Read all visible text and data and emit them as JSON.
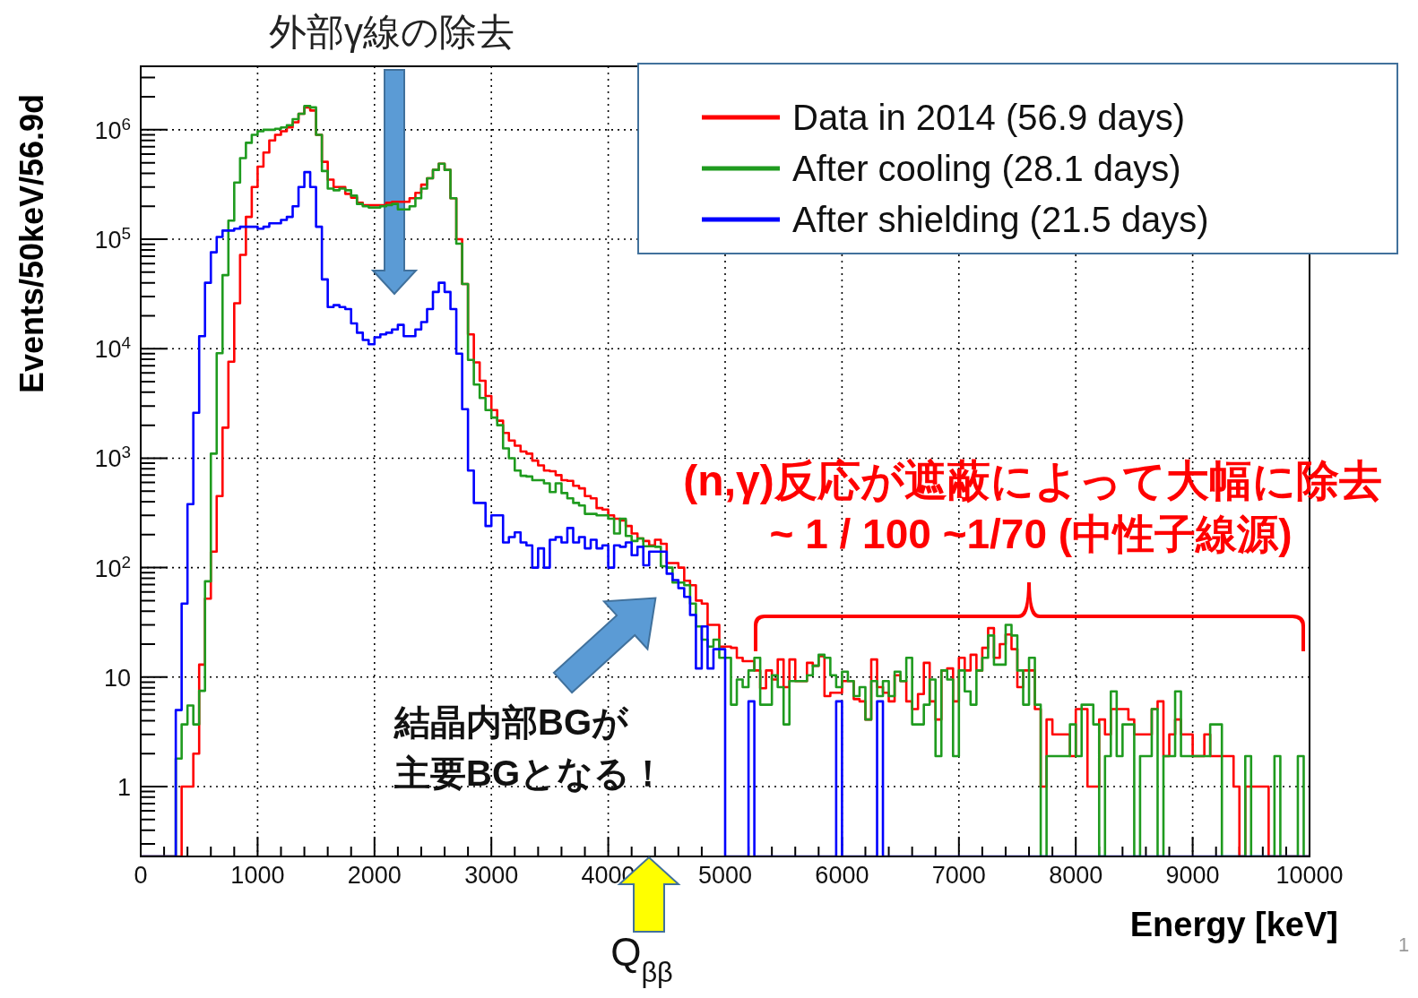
{
  "chart_data": {
    "type": "histogram",
    "xlabel": "Energy [keV]",
    "ylabel": "Events/50keV/56.9d",
    "bins": [
      0,
      50,
      100,
      150,
      200,
      250,
      300,
      350,
      400,
      450,
      500,
      550,
      600,
      650,
      700,
      750,
      800,
      850,
      900,
      950,
      1000,
      1050,
      1100,
      1150,
      1200,
      1250,
      1300,
      1350,
      1400,
      1450,
      1500,
      1550,
      1600,
      1650,
      1700,
      1750,
      1800,
      1850,
      1900,
      1950,
      2000,
      2050,
      2100,
      2150,
      2200,
      2250,
      2300,
      2350,
      2400,
      2450,
      2500,
      2550,
      2600,
      2650,
      2700,
      2750,
      2800,
      2850,
      2900,
      2950,
      3000,
      3050,
      3100,
      3150,
      3200,
      3250,
      3300,
      3350,
      3400,
      3450,
      3500,
      3550,
      3600,
      3650,
      3700,
      3750,
      3800,
      3850,
      3900,
      3950,
      4000,
      4050,
      4100,
      4150,
      4200,
      4250,
      4300,
      4350,
      4400,
      4450,
      4500,
      4550,
      4600,
      4650,
      4700,
      4750,
      4800,
      4850,
      4900,
      4950,
      5000,
      5050,
      5100,
      5150,
      5200,
      5250,
      5300,
      5350,
      5400,
      5450,
      5500,
      5550,
      5600,
      5650,
      5700,
      5750,
      5800,
      5850,
      5900,
      5950,
      6000,
      6050,
      6100,
      6150,
      6200,
      6250,
      6300,
      6350,
      6400,
      6450,
      6500,
      6550,
      6600,
      6650,
      6700,
      6750,
      6800,
      6850,
      6900,
      6950,
      7000,
      7050,
      7100,
      7150,
      7200,
      7250,
      7300,
      7350,
      7400,
      7450,
      7500,
      7550,
      7600,
      7650,
      7700,
      7750,
      7800,
      7850,
      7900,
      7950,
      8000,
      8050,
      8100,
      8150,
      8200,
      8250,
      8300,
      8350,
      8400,
      8450,
      8500,
      8550,
      8600,
      8650,
      8700,
      8750,
      8800,
      8850,
      8900,
      8950,
      9000,
      9050,
      9100,
      9150,
      9200,
      9250,
      9300,
      9350,
      9400,
      9450,
      9500,
      9550,
      9600,
      9650,
      9700,
      9750,
      9800,
      9850,
      9900,
      9950,
      10000
    ],
    "series": [
      {
        "name": "Data in 2014 (56.9 days)",
        "color": "#ff0000",
        "values": [
          null,
          null,
          null,
          null,
          null,
          null,
          null,
          1,
          1,
          2,
          13,
          52,
          140,
          450,
          1900,
          7600,
          26000,
          72000,
          160000,
          300000,
          460000,
          620000,
          800000,
          900000,
          970000,
          1050000,
          1170000,
          1400000,
          1600000,
          1500000,
          900000,
          510000,
          350000,
          300000,
          300000,
          260000,
          240000,
          215000,
          205000,
          205000,
          205000,
          205000,
          215000,
          220000,
          220000,
          220000,
          237000,
          265000,
          315000,
          360000,
          430000,
          490000,
          430000,
          237000,
          100000,
          39000,
          13500,
          7500,
          5100,
          3700,
          2750,
          2200,
          1700,
          1450,
          1300,
          1150,
          1100,
          950,
          860,
          770,
          760,
          700,
          630,
          620,
          560,
          530,
          450,
          430,
          350,
          340,
          300,
          280,
          270,
          240,
          205,
          185,
          175,
          160,
          180,
          165,
          110,
          110,
          100,
          76,
          69,
          50,
          47,
          30,
          30,
          19,
          19,
          18.5,
          15,
          14,
          14,
          11.5,
          7.9,
          11.5,
          9.5,
          14.5,
          8.1,
          14.5,
          9.2,
          9.2,
          13.5,
          12.7,
          15.5,
          6.7,
          7.2,
          7.2,
          9.2,
          9.2,
          6.3,
          6,
          4.1,
          14.5,
          8.1,
          7.2,
          6,
          10.4,
          9.2,
          6,
          5.1,
          7,
          13.5,
          6,
          4.1,
          11.5,
          12,
          6,
          15,
          11.5,
          16,
          11.5,
          18.5,
          28,
          15,
          20,
          24.5,
          18,
          8.1,
          11.5,
          11.5,
          5.1,
          1,
          4.1,
          3,
          3,
          3,
          1.9,
          5.1,
          5.1,
          1,
          1,
          4.1,
          3,
          5.1,
          5.1,
          5.1,
          4.1,
          3,
          3,
          3,
          5.1,
          6,
          1.9,
          3,
          4.1,
          3,
          3,
          1.9,
          1.9,
          3,
          1.9,
          1.9,
          1.9,
          1.9,
          1,
          null,
          1,
          1,
          1,
          1,
          null,
          null,
          null,
          null,
          null,
          null,
          null
        ]
      },
      {
        "name": "After cooling (28.1 days)",
        "color": "#1f9b1f",
        "values": [
          null,
          null,
          null,
          null,
          null,
          null,
          1.8,
          3.7,
          5.5,
          3.7,
          7.5,
          75,
          1100,
          9100,
          47000,
          148000,
          330000,
          550000,
          760000,
          900000,
          970000,
          1000000,
          1000000,
          1020000,
          1050000,
          1100000,
          1250000,
          1400000,
          1650000,
          1600000,
          900000,
          420000,
          290000,
          280000,
          290000,
          280000,
          250000,
          210000,
          200000,
          195000,
          195000,
          200000,
          205000,
          210000,
          187000,
          187000,
          200000,
          237000,
          290000,
          360000,
          430000,
          490000,
          430000,
          237000,
          91000,
          39000,
          7900,
          4700,
          3550,
          2750,
          2350,
          2000,
          1230,
          1000,
          770,
          690,
          680,
          630,
          630,
          590,
          490,
          590,
          480,
          430,
          390,
          370,
          310,
          310,
          300,
          300,
          280,
          205,
          280,
          195,
          175,
          185,
          157,
          157,
          155,
          103,
          100,
          73,
          73,
          69,
          47,
          29,
          22,
          19,
          22,
          15,
          15,
          5.6,
          9.5,
          8.1,
          11.5,
          15,
          5.6,
          5.6,
          10.4,
          8.1,
          3.7,
          9.2,
          9.2,
          9.2,
          10.4,
          12.7,
          16,
          15,
          10.4,
          8.1,
          11.2,
          9.2,
          6.7,
          8.1,
          4.1,
          9.2,
          6.7,
          9.2,
          6.7,
          11.2,
          9.2,
          15,
          3.7,
          3.7,
          5.6,
          9.5,
          1.9,
          11.5,
          9.5,
          1.9,
          11.5,
          7.4,
          5.6,
          11.5,
          15,
          24,
          13,
          13,
          30,
          24,
          11.5,
          5.6,
          15,
          5.6,
          null,
          1.9,
          1.9,
          1.9,
          1.9,
          3.7,
          1.9,
          5.6,
          5.6,
          3.7,
          null,
          1.9,
          7.4,
          1.9,
          3.7,
          3.7,
          null,
          1.9,
          1.9,
          5.1,
          null,
          1.9,
          1.9,
          7.4,
          1.9,
          1.9,
          1.9,
          1.9,
          1.9,
          3.7,
          3.7,
          null,
          null,
          null,
          null,
          1.9,
          null,
          null,
          null,
          null,
          1.9,
          null,
          null,
          null,
          1.9,
          null
        ]
      },
      {
        "name": "After shielding (21.5 days)",
        "color": "#0000ff",
        "values": [
          null,
          null,
          null,
          null,
          null,
          null,
          5,
          47,
          380,
          2600,
          13000,
          40000,
          76000,
          105000,
          120000,
          120000,
          125000,
          130000,
          130000,
          130000,
          125000,
          130000,
          140000,
          140000,
          150000,
          160000,
          200000,
          300000,
          410000,
          300000,
          130000,
          43000,
          24000,
          25000,
          24000,
          23000,
          17000,
          14000,
          12000,
          11000,
          12700,
          13500,
          14000,
          15000,
          16500,
          13000,
          13000,
          15000,
          17500,
          23000,
          33000,
          40000,
          33000,
          23000,
          9000,
          2800,
          770,
          390,
          390,
          240,
          300,
          300,
          170,
          190,
          210,
          170,
          160,
          100,
          150,
          100,
          180,
          190,
          170,
          230,
          170,
          190,
          150,
          180,
          150,
          160,
          100,
          160,
          155,
          170,
          130,
          155,
          105,
          140,
          140,
          140,
          88,
          77,
          65,
          54,
          37,
          12,
          29,
          12,
          18,
          18,
          null,
          null,
          null,
          null,
          6,
          null,
          null,
          null,
          null,
          null,
          null,
          null,
          null,
          null,
          null,
          null,
          null,
          null,
          null,
          6,
          null,
          null,
          null,
          null,
          null,
          null,
          6,
          null,
          null,
          null,
          null,
          null,
          null,
          null,
          null,
          null,
          null,
          null,
          null,
          null,
          null,
          null,
          null,
          null,
          null,
          null,
          null,
          null,
          null,
          null,
          null,
          null,
          null,
          null,
          null,
          null,
          null,
          null,
          null,
          null,
          null,
          null,
          null,
          null,
          null,
          null,
          null,
          null,
          null,
          null,
          null,
          null,
          null,
          null,
          null,
          null,
          null,
          null,
          null,
          null,
          null,
          null,
          null,
          null,
          null,
          null,
          null,
          null,
          null,
          null,
          null,
          null,
          null,
          null,
          null,
          null,
          null,
          null,
          null,
          null
        ]
      }
    ],
    "xlim": [
      0,
      10000
    ],
    "ylim": [
      0.23,
      3800000
    ],
    "xticks": [
      0,
      1000,
      2000,
      3000,
      4000,
      5000,
      6000,
      7000,
      8000,
      9000,
      10000
    ],
    "yticks": [
      1,
      10,
      {
        "value": 100,
        "label": "10$^{2}$"
      },
      {
        "value": 1000,
        "label": "10$^{3}$"
      },
      {
        "value": 10000,
        "label": "10$^{4}$"
      },
      {
        "value": 100000,
        "label": "10$^{5}$"
      },
      {
        "value": 1000000,
        "label": "10$^{6}$"
      }
    ],
    "log": "y",
    "grid": true,
    "legend": "top right",
    "annotations": [
      "外部γ線の除去",
      "(n,γ)反応が遮蔽によって大幅に除去",
      "~ 1 / 100 ~1/70 (中性子線源)",
      "結晶内部BGが",
      "主要BGとなる！",
      "Q$_{ββ}$",
      "1"
    ]
  }
}
